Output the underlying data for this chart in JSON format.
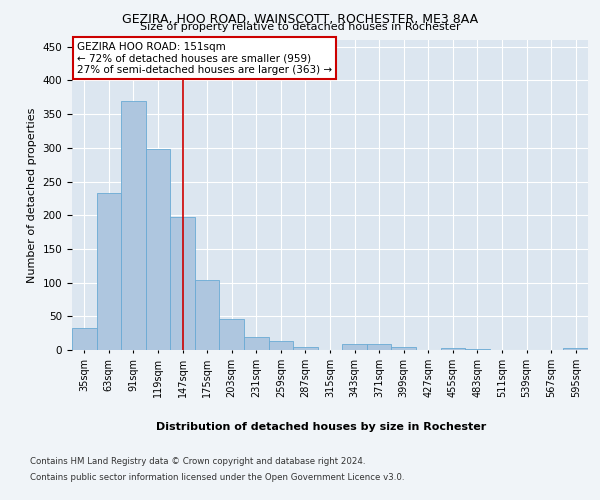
{
  "title": "GEZIRA, HOO ROAD, WAINSCOTT, ROCHESTER, ME3 8AA",
  "subtitle": "Size of property relative to detached houses in Rochester",
  "xlabel": "Distribution of detached houses by size in Rochester",
  "ylabel": "Number of detached properties",
  "footer_line1": "Contains HM Land Registry data © Crown copyright and database right 2024.",
  "footer_line2": "Contains public sector information licensed under the Open Government Licence v3.0.",
  "categories": [
    "35sqm",
    "63sqm",
    "91sqm",
    "119sqm",
    "147sqm",
    "175sqm",
    "203sqm",
    "231sqm",
    "259sqm",
    "287sqm",
    "315sqm",
    "343sqm",
    "371sqm",
    "399sqm",
    "427sqm",
    "455sqm",
    "483sqm",
    "511sqm",
    "539sqm",
    "567sqm",
    "595sqm"
  ],
  "values": [
    32,
    233,
    370,
    298,
    197,
    104,
    46,
    19,
    13,
    4,
    0,
    9,
    9,
    5,
    0,
    3,
    1,
    0,
    0,
    0,
    3
  ],
  "bar_color": "#aec6df",
  "bar_edge_color": "#6aaad4",
  "reference_line_x": 4,
  "reference_line_color": "#cc0000",
  "annotation_title": "GEZIRA HOO ROAD: 151sqm",
  "annotation_line2": "← 72% of detached houses are smaller (959)",
  "annotation_line3": "27% of semi-detached houses are larger (363) →",
  "annotation_box_color": "#cc0000",
  "ylim": [
    0,
    460
  ],
  "yticks": [
    0,
    50,
    100,
    150,
    200,
    250,
    300,
    350,
    400,
    450
  ],
  "fig_bg_color": "#f0f4f8",
  "plot_bg_color": "#dce6f0"
}
